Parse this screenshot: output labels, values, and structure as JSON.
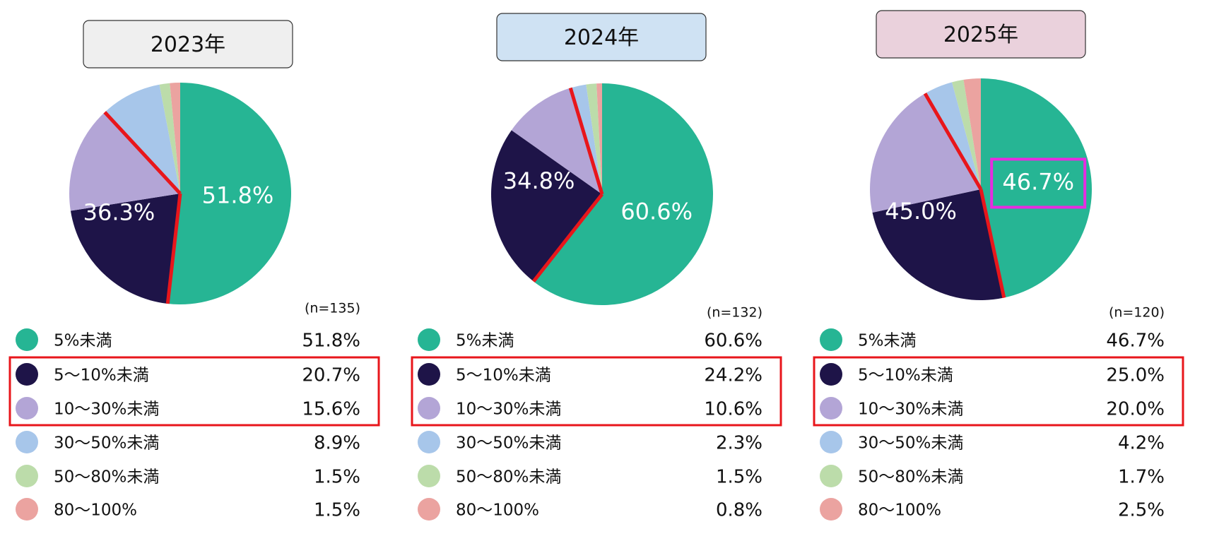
{
  "chart_data": [
    {
      "type": "pie",
      "title": "2023年",
      "title_bg": "#efefef",
      "n_label": "(n=135)",
      "categories": [
        "5%未満",
        "5〜10%未満",
        "10〜30%未満",
        "30〜50%未満",
        "50〜80%未満",
        "80〜100%"
      ],
      "values": [
        51.8,
        20.7,
        15.6,
        8.9,
        1.5,
        1.5
      ],
      "value_labels": [
        "51.8%",
        "20.7%",
        "15.6%",
        "8.9%",
        "1.5%",
        "1.5%"
      ],
      "colors": [
        "#26b594",
        "#1e1448",
        "#b3a5d6",
        "#a7c6ea",
        "#bcdcaa",
        "#eba3a0"
      ],
      "annotation": "36.3%",
      "highlight": [
        1,
        2
      ],
      "highlight_value_label": false
    },
    {
      "type": "pie",
      "title": "2024年",
      "title_bg": "#cfe2f3",
      "n_label": "(n=132)",
      "categories": [
        "5%未満",
        "5〜10%未満",
        "10〜30%未満",
        "30〜50%未満",
        "50〜80%未満",
        "80〜100%"
      ],
      "values": [
        60.6,
        24.2,
        10.6,
        2.3,
        1.5,
        0.8
      ],
      "value_labels": [
        "60.6%",
        "24.2%",
        "10.6%",
        "2.3%",
        "1.5%",
        "0.8%"
      ],
      "colors": [
        "#26b594",
        "#1e1448",
        "#b3a5d6",
        "#a7c6ea",
        "#bcdcaa",
        "#eba3a0"
      ],
      "annotation": "34.8%",
      "highlight": [
        1,
        2
      ],
      "highlight_value_label": false
    },
    {
      "type": "pie",
      "title": "2025年",
      "title_bg": "#ead1dc",
      "n_label": "(n=120)",
      "categories": [
        "5%未満",
        "5〜10%未満",
        "10〜30%未満",
        "30〜50%未満",
        "50〜80%未満",
        "80〜100%"
      ],
      "values": [
        46.7,
        25.0,
        20.0,
        4.2,
        1.7,
        2.5
      ],
      "value_labels": [
        "46.7%",
        "25.0%",
        "20.0%",
        "4.2%",
        "1.7%",
        "2.5%"
      ],
      "colors": [
        "#26b594",
        "#1e1448",
        "#b3a5d6",
        "#a7c6ea",
        "#bcdcaa",
        "#eba3a0"
      ],
      "annotation": "45.0%",
      "highlight": [
        1,
        2
      ],
      "highlight_value_label": true
    }
  ]
}
